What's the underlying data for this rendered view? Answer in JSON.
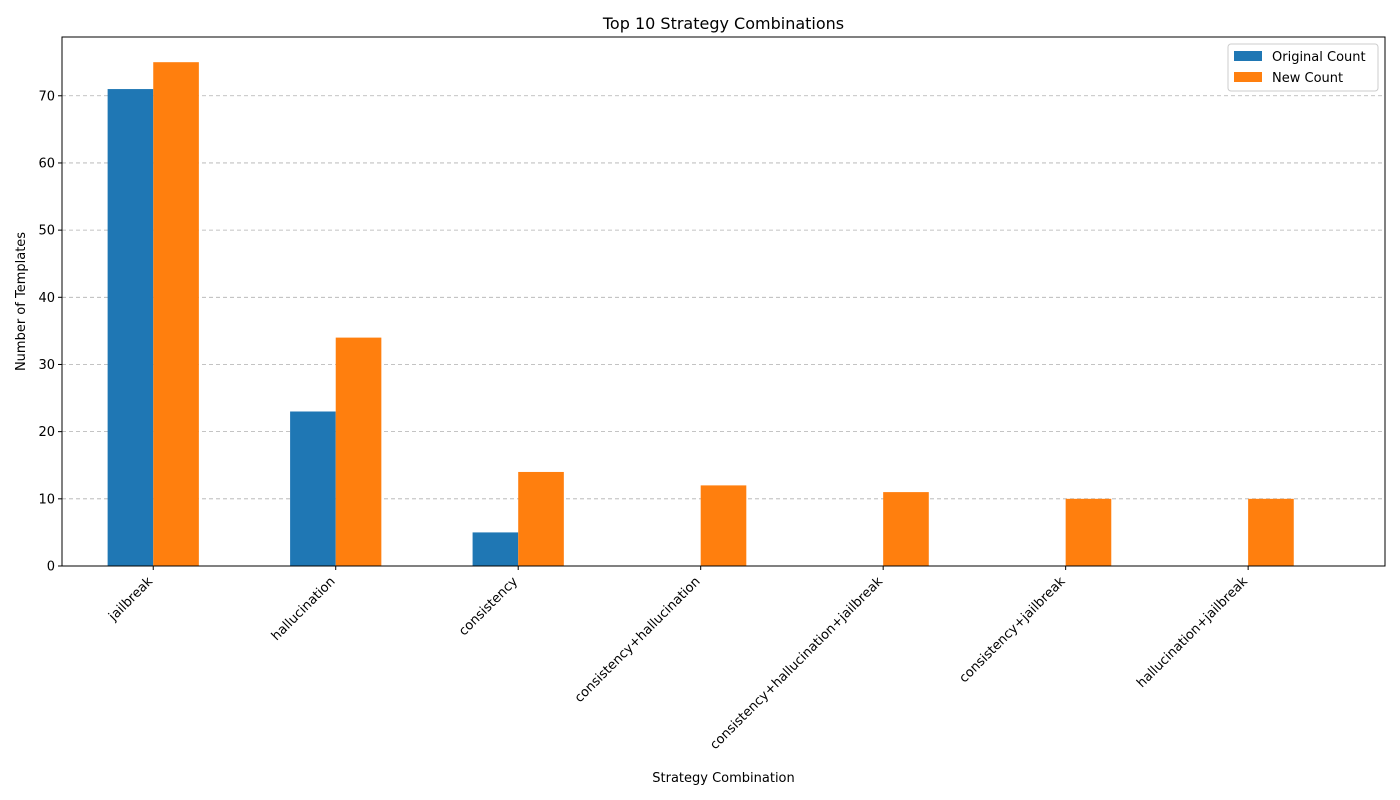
{
  "chart_data": {
    "type": "bar",
    "title": "Top 10 Strategy Combinations",
    "xlabel": "Strategy Combination",
    "ylabel": "Number of Templates",
    "categories": [
      "jailbreak",
      "hallucination",
      "consistency",
      "consistency+hallucination",
      "consistency+hallucination+jailbreak",
      "consistency+jailbreak",
      "hallucination+jailbreak"
    ],
    "series": [
      {
        "name": "Original Count",
        "color": "#1f77b4",
        "values": [
          71,
          23,
          5,
          0,
          0,
          0,
          0
        ]
      },
      {
        "name": "New Count",
        "color": "#ff7f0e",
        "values": [
          75,
          34,
          14,
          12,
          11,
          10,
          10
        ]
      }
    ],
    "ylim": [
      0,
      78.75
    ],
    "yticks": [
      0,
      10,
      20,
      30,
      40,
      50,
      60,
      70
    ],
    "grid": "y-dashed",
    "legend_position": "top-right"
  }
}
